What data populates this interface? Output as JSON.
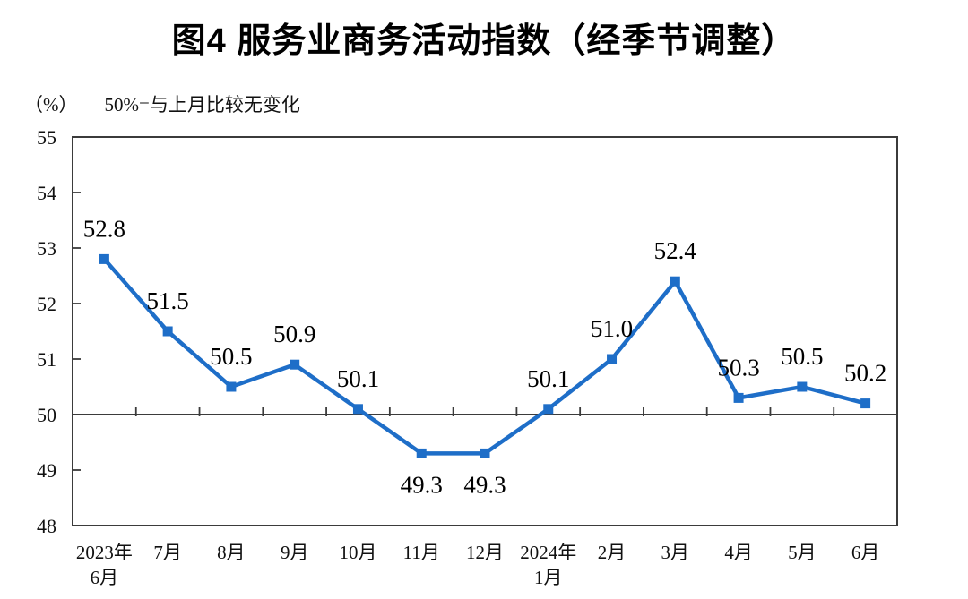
{
  "chart_data": {
    "type": "line",
    "title": "图4 服务业商务活动指数（经季节调整）",
    "unit_label": "（%）",
    "annotation": "50%=与上月比较无变化",
    "categories": [
      "2023年\n6月",
      "7月",
      "8月",
      "9月",
      "10月",
      "11月",
      "12月",
      "2024年\n1月",
      "2月",
      "3月",
      "4月",
      "5月",
      "6月"
    ],
    "values": [
      52.8,
      51.5,
      50.5,
      50.9,
      50.1,
      49.3,
      49.3,
      50.1,
      51.0,
      52.4,
      50.3,
      50.5,
      50.2
    ],
    "ylim": [
      48,
      55
    ],
    "ytick_step": 1,
    "reference_line": 50,
    "line_color": "#1e6ec8",
    "marker": "square",
    "data_label_decimals": 1,
    "grid": false,
    "legend": false
  }
}
